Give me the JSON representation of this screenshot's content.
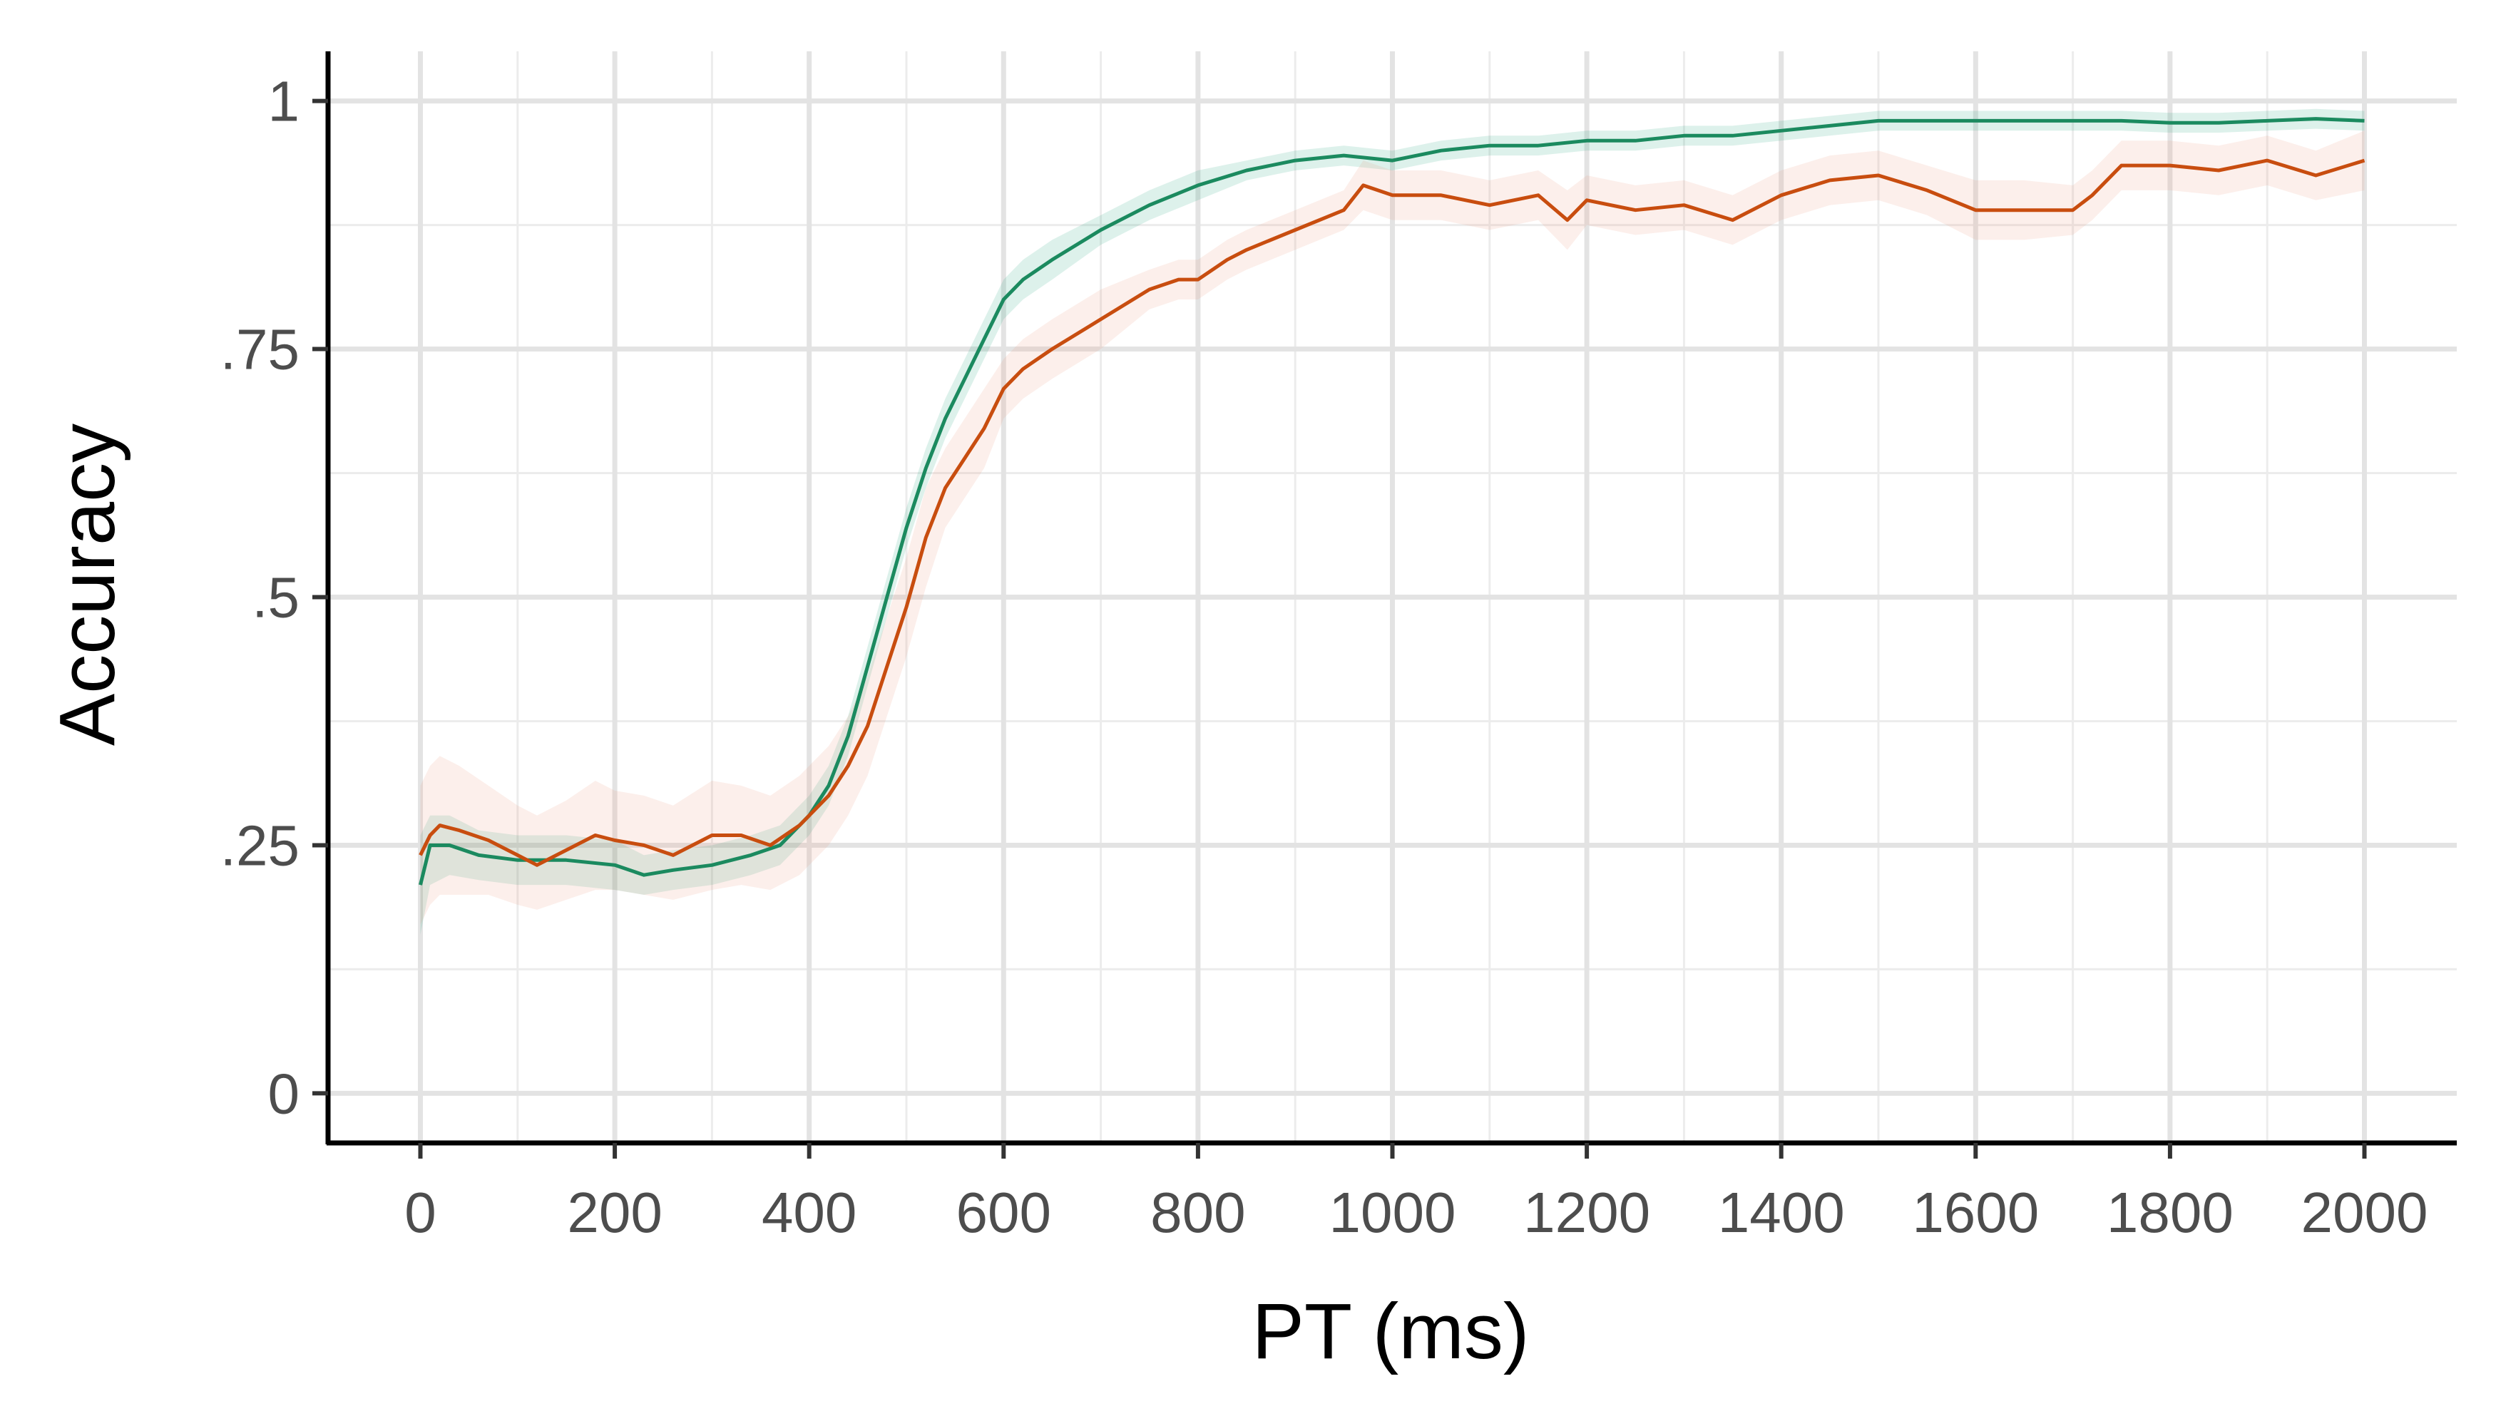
{
  "chart_data": {
    "type": "line",
    "title": "",
    "xlabel": "PT (ms)",
    "ylabel": "Accuracy",
    "xlim": [
      -95,
      2095
    ],
    "ylim": [
      -0.05,
      1.05
    ],
    "grid": true,
    "legend": "none",
    "x_ticks": [
      0,
      200,
      400,
      600,
      800,
      1000,
      1200,
      1400,
      1600,
      1800,
      2000
    ],
    "x_tick_labels": [
      "0",
      "200",
      "400",
      "600",
      "800",
      "1000",
      "1200",
      "1400",
      "1600",
      "1800",
      "2000"
    ],
    "y_ticks": [
      0,
      0.25,
      0.5,
      0.75,
      1
    ],
    "y_tick_labels": [
      "0",
      ".25",
      ".5",
      ".75",
      "1"
    ],
    "series": [
      {
        "name": "green",
        "color": "#1b8a5f",
        "band_color": "#1b9e77",
        "x": [
          0,
          10,
          30,
          60,
          100,
          150,
          200,
          230,
          260,
          300,
          340,
          370,
          400,
          420,
          440,
          460,
          480,
          500,
          520,
          540,
          560,
          580,
          600,
          620,
          650,
          700,
          750,
          800,
          850,
          900,
          950,
          1000,
          1050,
          1100,
          1150,
          1200,
          1250,
          1300,
          1350,
          1400,
          1450,
          1500,
          1550,
          1600,
          1650,
          1700,
          1750,
          1800,
          1850,
          1900,
          1950,
          2000
        ],
        "y": [
          0.21,
          0.25,
          0.25,
          0.24,
          0.235,
          0.235,
          0.23,
          0.22,
          0.225,
          0.23,
          0.24,
          0.25,
          0.28,
          0.31,
          0.36,
          0.43,
          0.5,
          0.57,
          0.63,
          0.68,
          0.72,
          0.76,
          0.8,
          0.82,
          0.84,
          0.87,
          0.895,
          0.915,
          0.93,
          0.94,
          0.945,
          0.94,
          0.95,
          0.955,
          0.955,
          0.96,
          0.96,
          0.965,
          0.965,
          0.97,
          0.975,
          0.98,
          0.98,
          0.98,
          0.98,
          0.98,
          0.98,
          0.978,
          0.978,
          0.98,
          0.982,
          0.98
        ],
        "lo": [
          0.16,
          0.21,
          0.22,
          0.215,
          0.21,
          0.21,
          0.205,
          0.2,
          0.205,
          0.21,
          0.22,
          0.23,
          0.26,
          0.29,
          0.34,
          0.41,
          0.48,
          0.55,
          0.61,
          0.66,
          0.7,
          0.74,
          0.78,
          0.8,
          0.82,
          0.855,
          0.88,
          0.9,
          0.92,
          0.93,
          0.935,
          0.93,
          0.94,
          0.945,
          0.945,
          0.95,
          0.95,
          0.955,
          0.955,
          0.96,
          0.965,
          0.97,
          0.97,
          0.97,
          0.97,
          0.97,
          0.97,
          0.968,
          0.968,
          0.97,
          0.972,
          0.97
        ],
        "hi": [
          0.26,
          0.28,
          0.28,
          0.265,
          0.26,
          0.26,
          0.255,
          0.24,
          0.245,
          0.25,
          0.26,
          0.27,
          0.3,
          0.33,
          0.38,
          0.45,
          0.52,
          0.59,
          0.65,
          0.7,
          0.74,
          0.78,
          0.82,
          0.84,
          0.86,
          0.885,
          0.91,
          0.93,
          0.94,
          0.95,
          0.955,
          0.95,
          0.96,
          0.965,
          0.965,
          0.97,
          0.97,
          0.975,
          0.975,
          0.98,
          0.985,
          0.99,
          0.99,
          0.99,
          0.99,
          0.99,
          0.99,
          0.988,
          0.988,
          0.99,
          0.992,
          0.99
        ]
      },
      {
        "name": "orange",
        "color": "#c84d0f",
        "band_color": "#e8967a",
        "x": [
          0,
          10,
          20,
          40,
          70,
          100,
          120,
          150,
          180,
          200,
          230,
          260,
          300,
          330,
          360,
          390,
          420,
          440,
          460,
          480,
          500,
          520,
          540,
          560,
          580,
          600,
          620,
          650,
          700,
          750,
          780,
          800,
          830,
          850,
          900,
          950,
          970,
          1000,
          1050,
          1100,
          1150,
          1180,
          1200,
          1250,
          1300,
          1350,
          1400,
          1450,
          1500,
          1550,
          1600,
          1650,
          1700,
          1720,
          1750,
          1800,
          1850,
          1900,
          1950,
          2000
        ],
        "y": [
          0.24,
          0.26,
          0.27,
          0.265,
          0.255,
          0.24,
          0.23,
          0.245,
          0.26,
          0.255,
          0.25,
          0.24,
          0.26,
          0.26,
          0.25,
          0.27,
          0.3,
          0.33,
          0.37,
          0.43,
          0.49,
          0.56,
          0.61,
          0.64,
          0.67,
          0.71,
          0.73,
          0.75,
          0.78,
          0.81,
          0.82,
          0.82,
          0.84,
          0.85,
          0.87,
          0.89,
          0.915,
          0.905,
          0.905,
          0.895,
          0.905,
          0.88,
          0.9,
          0.89,
          0.895,
          0.88,
          0.905,
          0.92,
          0.925,
          0.91,
          0.89,
          0.89,
          0.89,
          0.905,
          0.935,
          0.935,
          0.93,
          0.94,
          0.925,
          0.94
        ],
        "lo": [
          0.17,
          0.19,
          0.2,
          0.2,
          0.2,
          0.19,
          0.185,
          0.195,
          0.205,
          0.205,
          0.2,
          0.195,
          0.205,
          0.21,
          0.205,
          0.22,
          0.25,
          0.28,
          0.32,
          0.38,
          0.44,
          0.51,
          0.57,
          0.6,
          0.63,
          0.68,
          0.7,
          0.72,
          0.75,
          0.79,
          0.8,
          0.8,
          0.82,
          0.83,
          0.85,
          0.87,
          0.89,
          0.88,
          0.88,
          0.87,
          0.88,
          0.85,
          0.875,
          0.865,
          0.87,
          0.855,
          0.88,
          0.895,
          0.9,
          0.885,
          0.86,
          0.86,
          0.865,
          0.88,
          0.91,
          0.91,
          0.905,
          0.915,
          0.9,
          0.91
        ],
        "hi": [
          0.31,
          0.33,
          0.34,
          0.33,
          0.31,
          0.29,
          0.28,
          0.295,
          0.315,
          0.305,
          0.3,
          0.29,
          0.315,
          0.31,
          0.3,
          0.32,
          0.35,
          0.38,
          0.42,
          0.48,
          0.54,
          0.61,
          0.65,
          0.68,
          0.71,
          0.74,
          0.76,
          0.78,
          0.81,
          0.83,
          0.84,
          0.84,
          0.86,
          0.87,
          0.89,
          0.91,
          0.94,
          0.93,
          0.93,
          0.92,
          0.93,
          0.91,
          0.925,
          0.915,
          0.92,
          0.905,
          0.93,
          0.945,
          0.95,
          0.935,
          0.92,
          0.92,
          0.915,
          0.93,
          0.96,
          0.96,
          0.955,
          0.965,
          0.95,
          0.97
        ]
      }
    ]
  }
}
